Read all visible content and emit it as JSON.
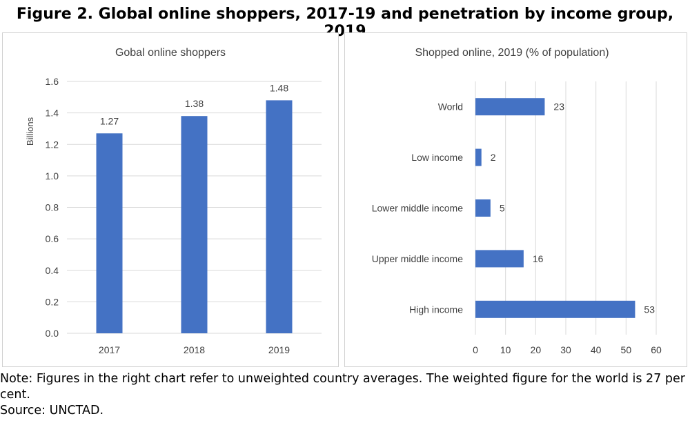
{
  "figure_title": "Figure 2. Global online shoppers, 2017-19 and penetration by income group, 2019",
  "note_text": "Note: Figures in the right chart refer to unweighted country averages. The weighted figure for the world is 27 per cent.",
  "source_text": "Source: UNCTAD.",
  "colors": {
    "bar": "#4472C4",
    "grid": "#d9d9d9",
    "text": "#404040"
  },
  "chart_data": [
    {
      "type": "bar",
      "orientation": "vertical",
      "title": "Gobal online shoppers",
      "xlabel": "",
      "ylabel": "Billions",
      "categories": [
        "2017",
        "2018",
        "2019"
      ],
      "values": [
        1.27,
        1.38,
        1.48
      ],
      "data_labels": [
        "1.27",
        "1.38",
        "1.48"
      ],
      "ylim": [
        0,
        1.6
      ],
      "yticks": [
        "0.0",
        "0.2",
        "0.4",
        "0.6",
        "0.8",
        "1.0",
        "1.2",
        "1.4",
        "1.6"
      ],
      "grid": "horizontal",
      "legend": "none"
    },
    {
      "type": "bar",
      "orientation": "horizontal",
      "title": "Shopped online, 2019 (% of population)",
      "xlabel": "",
      "ylabel": "",
      "categories": [
        "World",
        "Low income",
        "Lower middle income",
        "Upper middle income",
        "High income"
      ],
      "values": [
        23,
        2,
        5,
        16,
        53
      ],
      "data_labels": [
        "23",
        "2",
        "5",
        "16",
        "53"
      ],
      "xlim": [
        0,
        60
      ],
      "xticks": [
        "0",
        "10",
        "20",
        "30",
        "40",
        "50",
        "60"
      ],
      "grid": "vertical",
      "legend": "none"
    }
  ]
}
